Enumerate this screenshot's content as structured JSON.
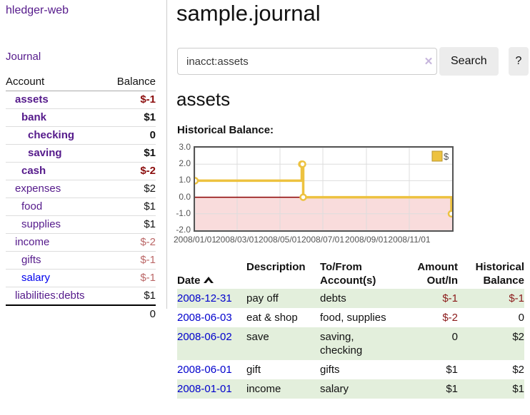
{
  "app": {
    "brand": "hledger-web",
    "nav_journal": "Journal"
  },
  "colors": {
    "accent_purple": "#551a8b",
    "unvisited_link_blue": "#0000ee",
    "date_link_blue": "#0000cd",
    "negative_strong": "#8b0d0d",
    "negative_soft": "#bb6767",
    "row_green": "#e3efdc",
    "chart_line": "#edc240",
    "chart_negative_fill": "#f9dcdc",
    "chart_zero_line": "#8b0000"
  },
  "sidebar": {
    "headers": {
      "account": "Account",
      "balance": "Balance"
    },
    "accounts": [
      {
        "name": "assets",
        "level": 1,
        "bold": true,
        "balance": "$-1",
        "balance_class": "neg-strong",
        "link_class": ""
      },
      {
        "name": "bank",
        "level": 2,
        "bold": true,
        "balance": "$1",
        "balance_class": "",
        "link_class": ""
      },
      {
        "name": "checking",
        "level": 3,
        "bold": true,
        "balance": "0",
        "balance_class": "",
        "link_class": ""
      },
      {
        "name": "saving",
        "level": 3,
        "bold": true,
        "balance": "$1",
        "balance_class": "",
        "link_class": ""
      },
      {
        "name": "cash",
        "level": 2,
        "bold": true,
        "balance": "$-2",
        "balance_class": "neg-strong",
        "link_class": ""
      },
      {
        "name": "expenses",
        "level": 1,
        "bold": false,
        "balance": "$2",
        "balance_class": "",
        "link_class": ""
      },
      {
        "name": "food",
        "level": 2,
        "bold": false,
        "balance": "$1",
        "balance_class": "",
        "link_class": ""
      },
      {
        "name": "supplies",
        "level": 2,
        "bold": false,
        "balance": "$1",
        "balance_class": "",
        "link_class": ""
      },
      {
        "name": "income",
        "level": 1,
        "bold": false,
        "balance": "$-2",
        "balance_class": "neg-soft",
        "link_class": ""
      },
      {
        "name": "gifts",
        "level": 2,
        "bold": false,
        "balance": "$-1",
        "balance_class": "neg-soft",
        "link_class": ""
      },
      {
        "name": "salary",
        "level": 2,
        "bold": false,
        "balance": "$-1",
        "balance_class": "neg-soft",
        "link_class": "unvisited"
      },
      {
        "name": "liabilities:debts",
        "level": 1,
        "bold": false,
        "balance": "$1",
        "balance_class": "",
        "link_class": ""
      }
    ],
    "total": "0"
  },
  "header": {
    "title": "sample.journal"
  },
  "search": {
    "value": "inacct:assets",
    "clear_icon": "✕",
    "button_label": "Search",
    "help_label": "?"
  },
  "account_page": {
    "title": "assets",
    "chart_label": "Historical Balance:"
  },
  "chart_data": {
    "type": "line",
    "style": "step",
    "legend": "$",
    "legend_position": "top-right",
    "grid": true,
    "ylim": [
      -2,
      3
    ],
    "y_ticks": [
      3.0,
      2.0,
      1.0,
      0.0,
      -1.0,
      -2.0
    ],
    "y_tick_labels": [
      "3.0",
      "2.0",
      "1.0",
      "0.0",
      "-1.0",
      "-2.0"
    ],
    "x_range_days": [
      0,
      366
    ],
    "x_tick_labels": [
      "2008/01/01",
      "2008/03/01",
      "2008/05/01",
      "2008/07/01",
      "2008/09/01",
      "2008/11/01"
    ],
    "x_tick_days": [
      0,
      60,
      121,
      182,
      244,
      305
    ],
    "series": [
      {
        "name": "$",
        "color": "#edc240",
        "x": [
          "2008-01-01",
          "2008-06-01",
          "2008-06-02",
          "2008-06-03",
          "2008-12-31"
        ],
        "x_days": [
          0,
          152,
          153,
          154,
          365
        ],
        "y": [
          1,
          2,
          2,
          0,
          -1
        ]
      }
    ],
    "negative_region": {
      "below": 0,
      "fill": "#f9dcdc",
      "zero_line_color": "#8b0000"
    }
  },
  "register": {
    "headers": {
      "date": "Date",
      "description": "Description",
      "accounts": "To/From\nAccount(s)",
      "amount": "Amount\nOut/In",
      "balance": "Historical\nBalance"
    },
    "rows": [
      {
        "date": "2008-12-31",
        "description": "pay off",
        "accounts": "debts",
        "amount": "$-1",
        "amount_neg": true,
        "balance": "$-1",
        "balance_neg": true,
        "shaded": true
      },
      {
        "date": "2008-06-03",
        "description": "eat & shop",
        "accounts": "food, supplies",
        "amount": "$-2",
        "amount_neg": true,
        "balance": "0",
        "balance_neg": false,
        "shaded": false
      },
      {
        "date": "2008-06-02",
        "description": "save",
        "accounts": "saving, checking",
        "amount": "0",
        "amount_neg": false,
        "balance": "$2",
        "balance_neg": false,
        "shaded": true
      },
      {
        "date": "2008-06-01",
        "description": "gift",
        "accounts": "gifts",
        "amount": "$1",
        "amount_neg": false,
        "balance": "$2",
        "balance_neg": false,
        "shaded": false
      },
      {
        "date": "2008-01-01",
        "description": "income",
        "accounts": "salary",
        "amount": "$1",
        "amount_neg": false,
        "balance": "$1",
        "balance_neg": false,
        "shaded": true
      }
    ]
  }
}
